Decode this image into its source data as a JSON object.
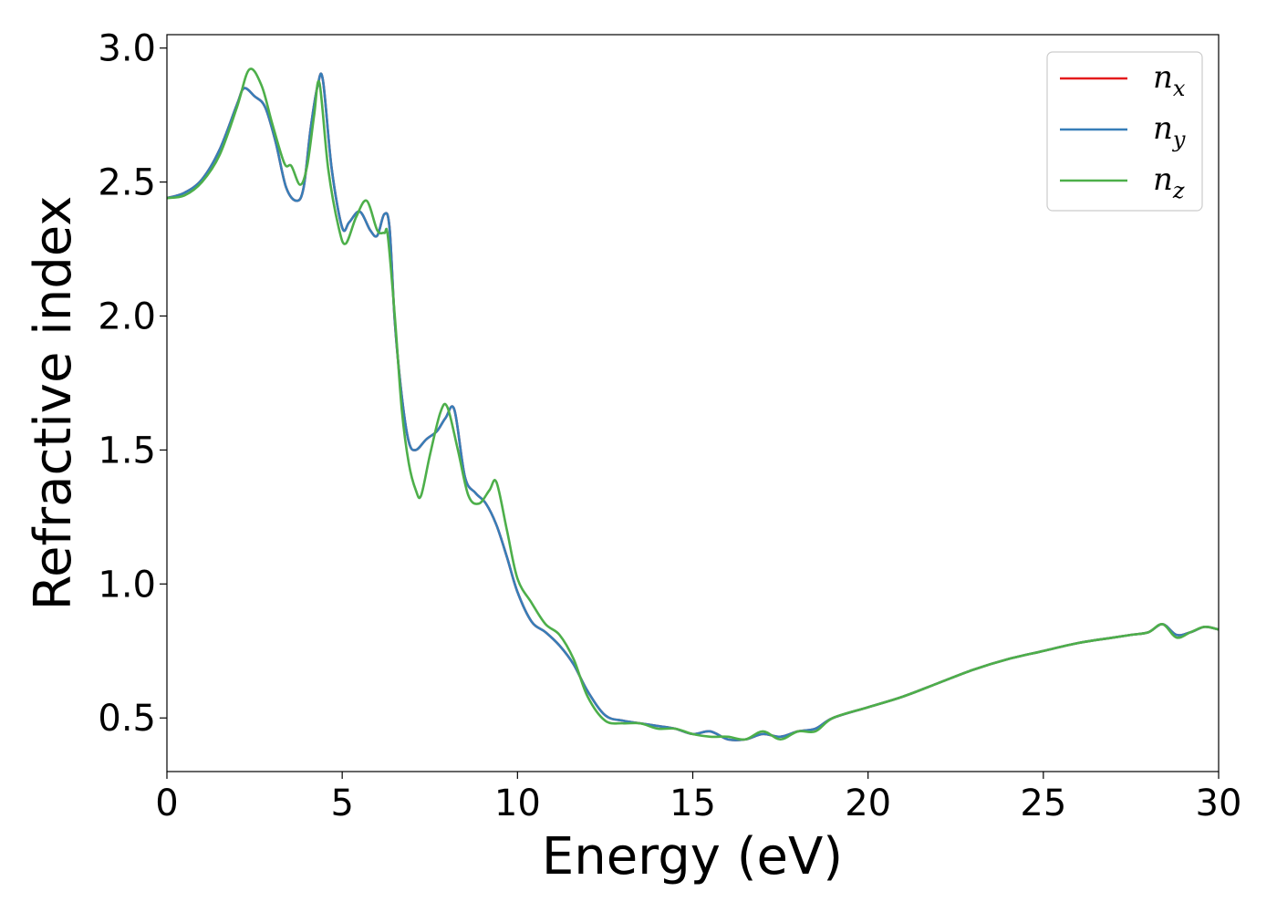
{
  "chart_data": {
    "type": "line",
    "xlabel": "Energy (eV)",
    "ylabel": "Refractive index",
    "xlim": [
      0,
      30
    ],
    "ylim": [
      0.3,
      3.05
    ],
    "xticks": [
      0,
      5,
      10,
      15,
      20,
      25,
      30
    ],
    "xtick_labels": [
      "0",
      "5",
      "10",
      "15",
      "20",
      "25",
      "30"
    ],
    "yticks": [
      0.5,
      1.0,
      1.5,
      2.0,
      2.5,
      3.0
    ],
    "ytick_labels": [
      "0.5",
      "1.0",
      "1.5",
      "2.0",
      "2.5",
      "3.0"
    ],
    "grid": false,
    "legend_position": "top-right",
    "series": [
      {
        "name": "n_x",
        "label_main": "n",
        "label_sub": "x",
        "color": "#e41a1c",
        "x": [
          0,
          0.5,
          1.0,
          1.5,
          2.0,
          2.2,
          2.5,
          2.8,
          3.1,
          3.4,
          3.7,
          3.9,
          4.1,
          4.3,
          4.45,
          4.7,
          5.0,
          5.2,
          5.5,
          5.8,
          6.0,
          6.2,
          6.35,
          6.5,
          6.7,
          6.9,
          7.1,
          7.4,
          7.7,
          7.95,
          8.2,
          8.5,
          8.8,
          9.1,
          9.4,
          9.7,
          10.0,
          10.4,
          10.8,
          11.2,
          11.6,
          12.0,
          12.5,
          13.0,
          13.5,
          14.0,
          14.5,
          15.0,
          15.5,
          16.0,
          16.5,
          17.0,
          17.5,
          18.0,
          18.5,
          19.0,
          20.0,
          21.0,
          22.0,
          23.0,
          24.0,
          25.0,
          26.0,
          27.0,
          27.5,
          28.0,
          28.4,
          28.8,
          29.2,
          29.6,
          30.0
        ],
        "y": [
          2.44,
          2.46,
          2.51,
          2.62,
          2.79,
          2.85,
          2.82,
          2.78,
          2.65,
          2.48,
          2.43,
          2.48,
          2.7,
          2.86,
          2.88,
          2.55,
          2.33,
          2.35,
          2.39,
          2.32,
          2.3,
          2.38,
          2.33,
          1.98,
          1.7,
          1.53,
          1.5,
          1.54,
          1.57,
          1.62,
          1.65,
          1.4,
          1.34,
          1.3,
          1.22,
          1.1,
          0.97,
          0.86,
          0.82,
          0.77,
          0.7,
          0.6,
          0.51,
          0.49,
          0.48,
          0.47,
          0.46,
          0.44,
          0.45,
          0.42,
          0.42,
          0.44,
          0.43,
          0.45,
          0.46,
          0.5,
          0.54,
          0.58,
          0.63,
          0.68,
          0.72,
          0.75,
          0.78,
          0.8,
          0.81,
          0.82,
          0.85,
          0.81,
          0.82,
          0.84,
          0.83
        ]
      },
      {
        "name": "n_y",
        "label_main": "n",
        "label_sub": "y",
        "color": "#377eb8",
        "x": [
          0,
          0.5,
          1.0,
          1.5,
          2.0,
          2.2,
          2.5,
          2.8,
          3.1,
          3.4,
          3.7,
          3.9,
          4.1,
          4.3,
          4.45,
          4.7,
          5.0,
          5.2,
          5.5,
          5.8,
          6.0,
          6.2,
          6.35,
          6.5,
          6.7,
          6.9,
          7.1,
          7.4,
          7.7,
          7.95,
          8.2,
          8.5,
          8.8,
          9.1,
          9.4,
          9.7,
          10.0,
          10.4,
          10.8,
          11.2,
          11.6,
          12.0,
          12.5,
          13.0,
          13.5,
          14.0,
          14.5,
          15.0,
          15.5,
          16.0,
          16.5,
          17.0,
          17.5,
          18.0,
          18.5,
          19.0,
          20.0,
          21.0,
          22.0,
          23.0,
          24.0,
          25.0,
          26.0,
          27.0,
          27.5,
          28.0,
          28.4,
          28.8,
          29.2,
          29.6,
          30.0
        ],
        "y": [
          2.44,
          2.46,
          2.51,
          2.62,
          2.79,
          2.85,
          2.82,
          2.78,
          2.65,
          2.48,
          2.43,
          2.48,
          2.7,
          2.86,
          2.88,
          2.55,
          2.33,
          2.35,
          2.39,
          2.32,
          2.3,
          2.38,
          2.33,
          1.98,
          1.7,
          1.53,
          1.5,
          1.54,
          1.57,
          1.62,
          1.65,
          1.4,
          1.34,
          1.3,
          1.22,
          1.1,
          0.97,
          0.86,
          0.82,
          0.77,
          0.7,
          0.6,
          0.51,
          0.49,
          0.48,
          0.47,
          0.46,
          0.44,
          0.45,
          0.42,
          0.42,
          0.44,
          0.43,
          0.45,
          0.46,
          0.5,
          0.54,
          0.58,
          0.63,
          0.68,
          0.72,
          0.75,
          0.78,
          0.8,
          0.81,
          0.82,
          0.85,
          0.81,
          0.82,
          0.84,
          0.83
        ]
      },
      {
        "name": "n_z",
        "label_main": "n",
        "label_sub": "z",
        "color": "#4daf4a",
        "x": [
          0,
          0.5,
          1.0,
          1.5,
          2.0,
          2.35,
          2.7,
          3.0,
          3.35,
          3.55,
          3.8,
          4.0,
          4.2,
          4.35,
          4.6,
          4.9,
          5.1,
          5.4,
          5.7,
          6.0,
          6.2,
          6.3,
          6.5,
          6.7,
          6.9,
          7.1,
          7.25,
          7.5,
          7.8,
          8.0,
          8.3,
          8.6,
          8.9,
          9.2,
          9.4,
          9.7,
          10.0,
          10.4,
          10.8,
          11.2,
          11.6,
          12.0,
          12.5,
          13.0,
          13.5,
          14.0,
          14.5,
          15.0,
          15.5,
          16.0,
          16.5,
          17.0,
          17.5,
          18.0,
          18.5,
          19.0,
          20.0,
          21.0,
          22.0,
          23.0,
          24.0,
          25.0,
          26.0,
          27.0,
          27.5,
          28.0,
          28.4,
          28.8,
          29.2,
          29.6,
          30.0
        ],
        "y": [
          2.44,
          2.45,
          2.5,
          2.6,
          2.78,
          2.92,
          2.86,
          2.72,
          2.57,
          2.56,
          2.49,
          2.56,
          2.75,
          2.87,
          2.55,
          2.33,
          2.27,
          2.37,
          2.43,
          2.32,
          2.31,
          2.3,
          2.0,
          1.65,
          1.45,
          1.35,
          1.33,
          1.48,
          1.64,
          1.66,
          1.5,
          1.33,
          1.3,
          1.35,
          1.38,
          1.2,
          1.02,
          0.93,
          0.85,
          0.81,
          0.72,
          0.58,
          0.49,
          0.48,
          0.48,
          0.46,
          0.46,
          0.44,
          0.43,
          0.43,
          0.42,
          0.45,
          0.42,
          0.45,
          0.45,
          0.5,
          0.54,
          0.58,
          0.63,
          0.68,
          0.72,
          0.75,
          0.78,
          0.8,
          0.81,
          0.82,
          0.85,
          0.8,
          0.82,
          0.84,
          0.83
        ]
      }
    ]
  }
}
